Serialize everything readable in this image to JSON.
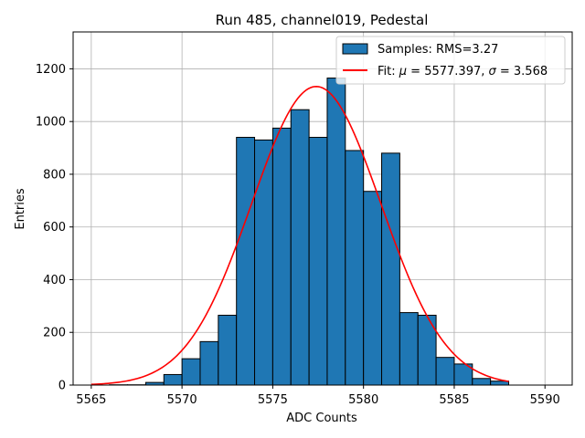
{
  "chart_data": {
    "type": "bar",
    "title": "Run 485, channel019, Pedestal",
    "xlabel": "ADC Counts",
    "ylabel": "Entries",
    "xlim": [
      5564,
      5591.5
    ],
    "ylim": [
      0,
      1340
    ],
    "xticks": [
      5565,
      5570,
      5575,
      5580,
      5585,
      5590
    ],
    "yticks": [
      0,
      200,
      400,
      600,
      800,
      1000,
      1200
    ],
    "grid": true,
    "legend_position": "top-right",
    "histogram": {
      "name": "Samples: RMS=3.27",
      "bin_edges": [
        5565,
        5566,
        5567,
        5568,
        5569,
        5570,
        5571,
        5572,
        5573,
        5574,
        5575,
        5576,
        5577,
        5578,
        5579,
        5580,
        5581,
        5582,
        5583,
        5584,
        5585,
        5586,
        5587,
        5588
      ],
      "counts": [
        0,
        1,
        1,
        10,
        40,
        100,
        165,
        265,
        940,
        930,
        975,
        1045,
        940,
        1165,
        890,
        735,
        880,
        275,
        265,
        105,
        80,
        25,
        15
      ],
      "color": "#1f77b4",
      "edgecolor": "#000000"
    },
    "fit": {
      "name": "Fit: μ = 5577.397, σ = 3.568",
      "legend_parts": [
        "Fit: ",
        "μ",
        " = 5577.397, ",
        "σ",
        " = 3.568"
      ],
      "mu": 5577.397,
      "sigma": 3.568,
      "amplitude": 1133,
      "x_range": [
        5565,
        5588
      ],
      "color": "#ff0000"
    }
  }
}
